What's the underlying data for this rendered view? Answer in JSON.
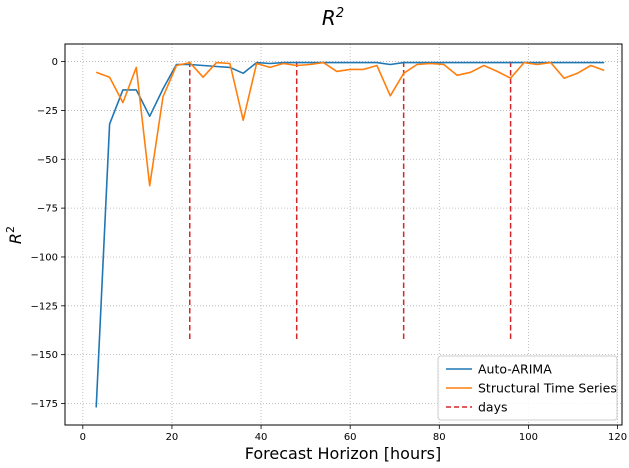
{
  "chart_data": {
    "type": "line",
    "title": "R",
    "title_sup": "2",
    "xlabel": "Forecast Horizon [hours]",
    "ylabel": "R",
    "ylabel_sup": "2",
    "xlim": [
      -4,
      121
    ],
    "ylim": [
      -186,
      9
    ],
    "xticks": [
      0,
      20,
      40,
      60,
      80,
      100,
      120
    ],
    "yticks": [
      0,
      -25,
      -50,
      -75,
      -100,
      -125,
      -150,
      -175
    ],
    "grid": true,
    "legend_position": "lower-right",
    "series": [
      {
        "name": "Auto-ARIMA",
        "color": "#1f77b4",
        "style": "solid",
        "x": [
          3,
          6,
          9,
          12,
          15,
          18,
          21,
          24,
          27,
          30,
          33,
          36,
          39,
          42,
          45,
          48,
          51,
          54,
          57,
          60,
          63,
          66,
          69,
          72,
          75,
          78,
          81,
          84,
          87,
          90,
          93,
          96,
          99,
          102,
          105,
          108,
          111,
          114,
          117
        ],
        "y": [
          -177,
          -32,
          -14.5,
          -14.5,
          -28,
          -14,
          -1.5,
          -1.5,
          -2,
          -2.5,
          -3,
          -6,
          -0.5,
          -1,
          -0.5,
          -0.5,
          -0.5,
          -0.5,
          -0.5,
          -0.5,
          -0.5,
          -0.5,
          -1.5,
          -0.5,
          -0.5,
          -0.5,
          -0.5,
          -0.5,
          -0.5,
          -0.5,
          -0.5,
          -0.5,
          -0.5,
          -0.5,
          -0.5,
          -0.5,
          -0.5,
          -0.5,
          -0.5
        ]
      },
      {
        "name": "Structural Time Series",
        "color": "#ff7f0e",
        "style": "solid",
        "x": [
          3,
          6,
          9,
          12,
          15,
          18,
          21,
          24,
          27,
          30,
          33,
          36,
          39,
          42,
          45,
          48,
          51,
          54,
          57,
          60,
          63,
          66,
          69,
          72,
          75,
          78,
          81,
          84,
          87,
          90,
          93,
          96,
          99,
          102,
          105,
          108,
          111,
          114,
          117
        ],
        "y": [
          -5.5,
          -8,
          -21,
          -3,
          -63.5,
          -18,
          -2,
          -0.5,
          -8,
          -0.5,
          -1,
          -30,
          -1,
          -3,
          -1,
          -2,
          -1.5,
          -0.5,
          -5,
          -4,
          -4,
          -2,
          -17.5,
          -6,
          -1.5,
          -1,
          -1.5,
          -7,
          -5.5,
          -2,
          -5,
          -8.5,
          -0.5,
          -1.5,
          -0.5,
          -8.5,
          -6,
          -2,
          -4.5
        ]
      }
    ],
    "vlines": {
      "name": "days",
      "color": "#d62728",
      "style": "dashed",
      "x": [
        24,
        48,
        72,
        96
      ],
      "ymin": -142,
      "ymax": 0
    }
  }
}
